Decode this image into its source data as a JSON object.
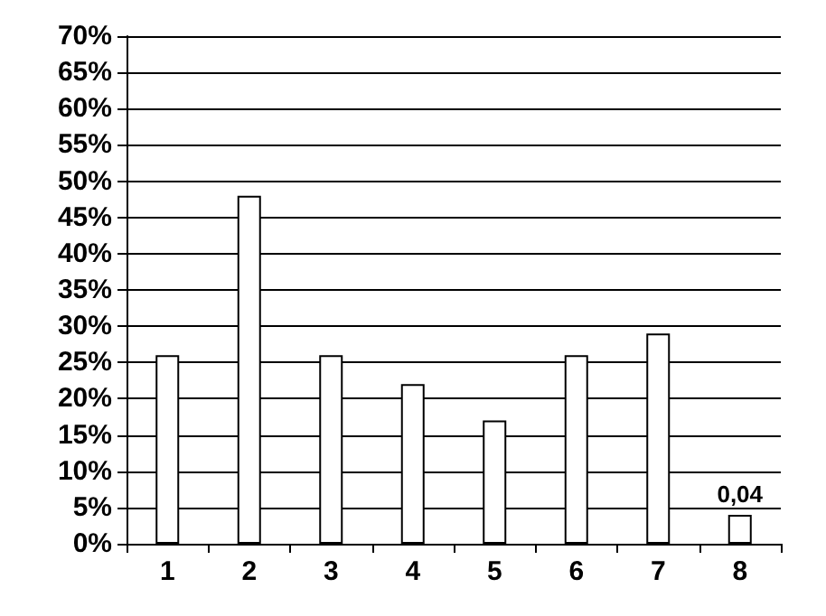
{
  "chart_data": {
    "type": "bar",
    "categories": [
      "1",
      "2",
      "3",
      "4",
      "5",
      "6",
      "7",
      "8"
    ],
    "values": [
      0.26,
      0.48,
      0.26,
      0.22,
      0.17,
      0.26,
      0.29,
      0.04
    ],
    "value_labels": [
      null,
      null,
      null,
      null,
      null,
      null,
      null,
      "0,04"
    ],
    "color": "#ffffff",
    "ylim": [
      0,
      0.7
    ],
    "yticks": [
      {
        "value": 0,
        "label": "0%"
      },
      {
        "value": 0.05,
        "label": "5%"
      },
      {
        "value": 0.1,
        "label": "10%"
      },
      {
        "value": 0.15,
        "label": "15%"
      },
      {
        "value": 0.2,
        "label": "20%"
      },
      {
        "value": 0.25,
        "label": "25%"
      },
      {
        "value": 0.3,
        "label": "30%"
      },
      {
        "value": 0.35,
        "label": "35%"
      },
      {
        "value": 0.4,
        "label": "40%"
      },
      {
        "value": 0.45,
        "label": "45%"
      },
      {
        "value": 0.5,
        "label": "50%"
      },
      {
        "value": 0.55,
        "label": "55%"
      },
      {
        "value": 0.6,
        "label": "60%"
      },
      {
        "value": 0.65,
        "label": "65%"
      },
      {
        "value": 0.7,
        "label": "70%"
      }
    ],
    "grid": "y"
  }
}
